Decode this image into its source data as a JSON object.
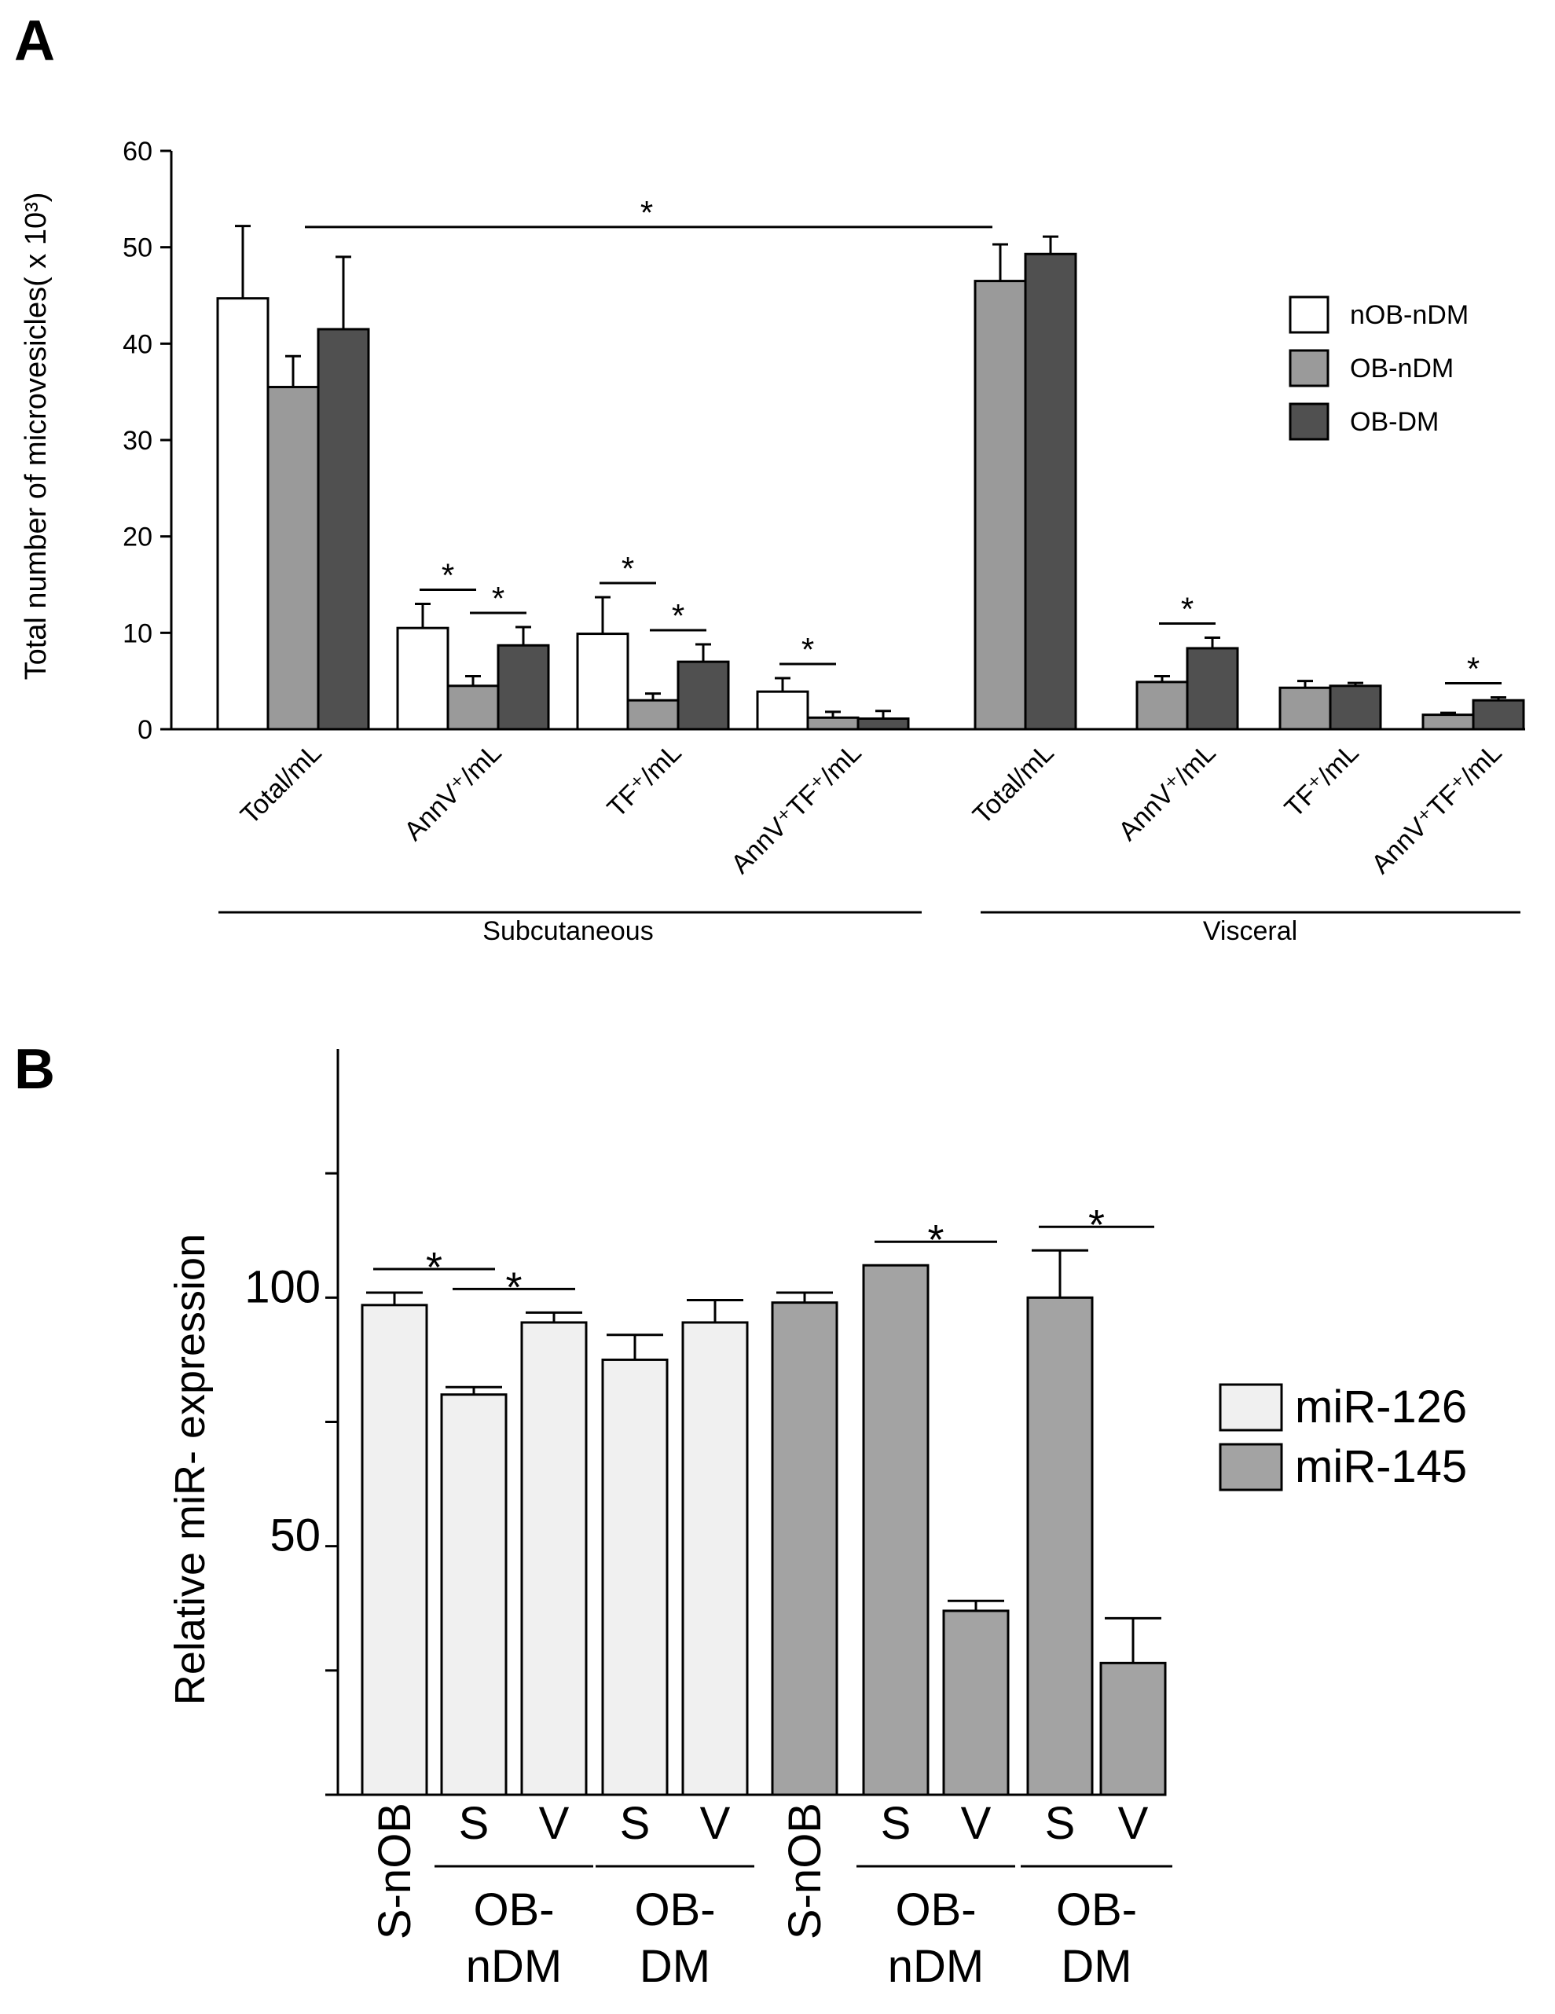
{
  "panel_a": {
    "letter": "A",
    "group_labels": [
      "Subcutaneous",
      "Visceral"
    ],
    "legend": [
      {
        "label": "nOB-nDM",
        "color": "#ffffff"
      },
      {
        "label": "OB-nDM",
        "color": "#9a9a9a"
      },
      {
        "label": "OB-DM",
        "color": "#505050"
      }
    ]
  },
  "panel_b": {
    "letter": "B",
    "legend": [
      {
        "label": "miR-126",
        "color": "#f0f0f0"
      },
      {
        "label": "miR-145",
        "color": "#a3a3a3"
      }
    ]
  },
  "chart_data": [
    {
      "type": "bar",
      "panel": "A",
      "title": "",
      "xlabel": "",
      "ylabel": "Total number of microvesicles( x 10³)",
      "ylim": [
        0,
        60
      ],
      "yticks": [
        0,
        10,
        20,
        30,
        40,
        50,
        60
      ],
      "categories": [
        "Total/mL",
        "AnnV⁺/mL",
        "TF⁺/mL",
        "AnnV⁺TF⁺/mL",
        "Total/mL",
        "AnnV⁺/mL",
        "TF⁺/mL",
        "AnnV⁺TF⁺/mL"
      ],
      "category_groups": [
        "Subcutaneous",
        "Subcutaneous",
        "Subcutaneous",
        "Subcutaneous",
        "Visceral",
        "Visceral",
        "Visceral",
        "Visceral"
      ],
      "series": [
        {
          "name": "nOB-nDM",
          "color": "#ffffff",
          "values": [
            44.7,
            10.5,
            9.9,
            3.9,
            null,
            null,
            null,
            null
          ],
          "errors": [
            7.5,
            2.5,
            3.8,
            1.4,
            null,
            null,
            null,
            null
          ]
        },
        {
          "name": "OB-nDM",
          "color": "#9a9a9a",
          "values": [
            35.5,
            4.5,
            3.0,
            1.2,
            46.5,
            4.9,
            4.3,
            1.5
          ],
          "errors": [
            3.2,
            1.0,
            0.7,
            0.6,
            3.8,
            0.6,
            0.7,
            0.2
          ]
        },
        {
          "name": "OB-DM",
          "color": "#505050",
          "values": [
            41.5,
            8.7,
            7.0,
            1.1,
            49.3,
            8.4,
            4.5,
            3.0
          ],
          "errors": [
            7.5,
            1.9,
            1.8,
            0.8,
            1.8,
            1.1,
            0.3,
            0.3
          ]
        }
      ],
      "significance": [
        {
          "label": "*",
          "from": {
            "category": 0,
            "series": 1
          },
          "to": {
            "category": 4,
            "series": 1
          }
        },
        {
          "label": "*",
          "from": {
            "category": 1,
            "series": 0
          },
          "to": {
            "category": 1,
            "series": 1
          }
        },
        {
          "label": "*",
          "from": {
            "category": 1,
            "series": 1
          },
          "to": {
            "category": 1,
            "series": 2
          }
        },
        {
          "label": "*",
          "from": {
            "category": 2,
            "series": 0
          },
          "to": {
            "category": 2,
            "series": 1
          }
        },
        {
          "label": "*",
          "from": {
            "category": 2,
            "series": 1
          },
          "to": {
            "category": 2,
            "series": 2
          }
        },
        {
          "label": "*",
          "from": {
            "category": 3,
            "series": 0
          },
          "to": {
            "category": 3,
            "series": 1
          }
        },
        {
          "label": "*",
          "from": {
            "category": 5,
            "series": 1
          },
          "to": {
            "category": 5,
            "series": 2
          }
        },
        {
          "label": "*",
          "from": {
            "category": 7,
            "series": 1
          },
          "to": {
            "category": 7,
            "series": 2
          }
        }
      ],
      "legend_position": "right"
    },
    {
      "type": "bar",
      "panel": "B",
      "title": "",
      "xlabel": "",
      "ylabel": "Relative miR- expression",
      "ylim": [
        0,
        150
      ],
      "yticks": [
        0,
        25,
        50,
        75,
        100,
        125
      ],
      "ytick_labels": [
        "",
        "",
        "50",
        "",
        "100",
        ""
      ],
      "categories": [
        "S-nOB",
        "S",
        "V",
        "S",
        "V",
        "S-nOB",
        "S",
        "V",
        "S",
        "V"
      ],
      "category_groups": [
        "",
        "OB-\nnDM",
        "OB-\nnDM",
        "OB-\nDM",
        "OB-\nDM",
        "",
        "OB-\nnDM",
        "OB-\nnDM",
        "OB-\nDM",
        "OB-\nDM"
      ],
      "series": [
        {
          "name": "miR-126",
          "color": "#f0f0f0",
          "values": [
            98.5,
            80.5,
            95,
            87.5,
            95,
            null,
            null,
            null,
            null,
            null
          ],
          "errors": [
            2.5,
            1.5,
            2.0,
            5.0,
            4.5,
            null,
            null,
            null,
            null,
            null
          ]
        },
        {
          "name": "miR-145",
          "color": "#a3a3a3",
          "values": [
            null,
            null,
            null,
            null,
            null,
            99,
            106.5,
            37,
            100,
            26.5
          ],
          "errors": [
            null,
            null,
            null,
            null,
            null,
            2.0,
            0,
            2.0,
            9.5,
            9.0
          ]
        }
      ],
      "significance": [
        {
          "label": "*",
          "from": 0,
          "to": 1
        },
        {
          "label": "*",
          "from": 1,
          "to": 2
        },
        {
          "label": "*",
          "from": 6,
          "to": 7
        },
        {
          "label": "*",
          "from": 8,
          "to": 9
        }
      ],
      "legend_position": "right"
    }
  ]
}
